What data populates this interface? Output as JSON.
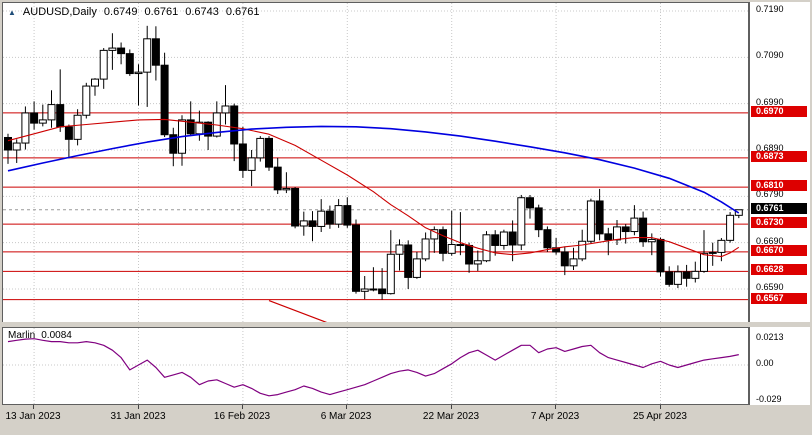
{
  "header": {
    "symbol": "AUDUSD,Daily",
    "open": "0.6749",
    "high": "0.6761",
    "low": "0.6743",
    "close": "0.6761"
  },
  "indicator_header": {
    "name": "Marlin",
    "value": "0.0084"
  },
  "price_axis": {
    "ticks": [
      "0.7190",
      "0.7090",
      "0.6990",
      "0.6890",
      "0.6790",
      "0.6690",
      "0.6590"
    ],
    "level_badges": [
      "0.6970",
      "0.6873",
      "0.6810",
      "0.6730",
      "0.6670",
      "0.6628",
      "0.6567"
    ],
    "current_badge": "0.6761"
  },
  "indicator_axis": {
    "ticks": [
      {
        "label": "0.0213",
        "value": 0.0213
      },
      {
        "label": "0.00",
        "value": 0
      },
      {
        "label": "-0.029",
        "value": -0.029
      }
    ]
  },
  "colors": {
    "frame": "#d4d0c8",
    "panel_bg": "#ffffff",
    "grid": "#c8c8c8",
    "candle_border": "#000000",
    "bull": "#ffffff",
    "bear": "#000000",
    "ma_slow": "#0000e0",
    "ma_fast": "#cc0000",
    "level_line": "#cc0000",
    "badge_red": "#dd0000",
    "badge_black": "#000000",
    "marlin": "#800080",
    "bid_line": "#999999"
  },
  "chart_data": {
    "type": "candlestick",
    "title": "AUDUSD, Daily",
    "ylabel": "Price",
    "ylim": [
      0.6517,
      0.7207
    ],
    "grid": true,
    "current_price": 0.6761,
    "levels": [
      0.697,
      0.6873,
      0.681,
      0.673,
      0.667,
      0.6628,
      0.6567
    ],
    "x_labels": [
      {
        "label": "13 Jan 2023",
        "index": 3
      },
      {
        "label": "31 Jan 2023",
        "index": 15
      },
      {
        "label": "16 Feb 2023",
        "index": 27
      },
      {
        "label": "6 Mar 2023",
        "index": 39
      },
      {
        "label": "22 Mar 2023",
        "index": 51
      },
      {
        "label": "7 Apr 2023",
        "index": 63
      },
      {
        "label": "25 Apr 2023",
        "index": 75
      }
    ],
    "candles": [
      [
        0.6917,
        0.6925,
        0.686,
        0.689
      ],
      [
        0.689,
        0.6913,
        0.6862,
        0.6905
      ],
      [
        0.6905,
        0.6984,
        0.6891,
        0.697
      ],
      [
        0.697,
        0.6995,
        0.6934,
        0.6948
      ],
      [
        0.6948,
        0.6988,
        0.6941,
        0.6955
      ],
      [
        0.6955,
        0.7019,
        0.6938,
        0.6988
      ],
      [
        0.6988,
        0.7064,
        0.6929,
        0.694
      ],
      [
        0.694,
        0.6945,
        0.6872,
        0.6913
      ],
      [
        0.6913,
        0.6978,
        0.69,
        0.6965
      ],
      [
        0.6965,
        0.7035,
        0.6958,
        0.7028
      ],
      [
        0.7028,
        0.7045,
        0.7007,
        0.7043
      ],
      [
        0.7043,
        0.711,
        0.7022,
        0.7105
      ],
      [
        0.7105,
        0.7142,
        0.7063,
        0.711
      ],
      [
        0.711,
        0.7122,
        0.7075,
        0.7098
      ],
      [
        0.7098,
        0.7107,
        0.705,
        0.7055
      ],
      [
        0.7055,
        0.7075,
        0.6986,
        0.7058
      ],
      [
        0.7058,
        0.7158,
        0.6983,
        0.713
      ],
      [
        0.713,
        0.7157,
        0.704,
        0.7073
      ],
      [
        0.7073,
        0.71,
        0.6918,
        0.6923
      ],
      [
        0.6923,
        0.6938,
        0.6855,
        0.6883
      ],
      [
        0.6883,
        0.6965,
        0.6856,
        0.6955
      ],
      [
        0.6955,
        0.6995,
        0.692,
        0.6925
      ],
      [
        0.6925,
        0.6975,
        0.691,
        0.695
      ],
      [
        0.695,
        0.6952,
        0.689,
        0.692
      ],
      [
        0.692,
        0.6995,
        0.6917,
        0.697
      ],
      [
        0.697,
        0.703,
        0.6945,
        0.6985
      ],
      [
        0.6985,
        0.699,
        0.6866,
        0.6903
      ],
      [
        0.6903,
        0.694,
        0.683,
        0.6846
      ],
      [
        0.6846,
        0.689,
        0.6812,
        0.6873
      ],
      [
        0.6873,
        0.692,
        0.6865,
        0.6915
      ],
      [
        0.6915,
        0.692,
        0.6845,
        0.6853
      ],
      [
        0.6853,
        0.6873,
        0.6795,
        0.6804
      ],
      [
        0.6804,
        0.6842,
        0.6797,
        0.6807
      ],
      [
        0.6807,
        0.681,
        0.6721,
        0.6726
      ],
      [
        0.6726,
        0.6757,
        0.6705,
        0.6737
      ],
      [
        0.6737,
        0.6758,
        0.6693,
        0.6725
      ],
      [
        0.6725,
        0.6784,
        0.6713,
        0.6758
      ],
      [
        0.6758,
        0.677,
        0.672,
        0.673
      ],
      [
        0.673,
        0.6784,
        0.6722,
        0.677
      ],
      [
        0.677,
        0.6788,
        0.6722,
        0.6728
      ],
      [
        0.6728,
        0.674,
        0.658,
        0.6585
      ],
      [
        0.6585,
        0.6618,
        0.6568,
        0.659
      ],
      [
        0.659,
        0.6637,
        0.6585,
        0.659
      ],
      [
        0.659,
        0.6635,
        0.6567,
        0.658
      ],
      [
        0.658,
        0.6717,
        0.6578,
        0.6665
      ],
      [
        0.6665,
        0.6697,
        0.663,
        0.6685
      ],
      [
        0.6685,
        0.6695,
        0.659,
        0.6615
      ],
      [
        0.6615,
        0.667,
        0.6612,
        0.6655
      ],
      [
        0.6655,
        0.6712,
        0.665,
        0.6698
      ],
      [
        0.6698,
        0.6725,
        0.6668,
        0.6718
      ],
      [
        0.6718,
        0.6725,
        0.665,
        0.6667
      ],
      [
        0.6667,
        0.6759,
        0.6662,
        0.6686
      ],
      [
        0.6686,
        0.6756,
        0.6663,
        0.6684
      ],
      [
        0.6684,
        0.669,
        0.6625,
        0.6644
      ],
      [
        0.6644,
        0.6673,
        0.6629,
        0.6651
      ],
      [
        0.6651,
        0.6715,
        0.6648,
        0.6707
      ],
      [
        0.6707,
        0.6717,
        0.6662,
        0.6684
      ],
      [
        0.6684,
        0.6718,
        0.6675,
        0.6713
      ],
      [
        0.6713,
        0.6738,
        0.665,
        0.6685
      ],
      [
        0.6685,
        0.6793,
        0.6674,
        0.6787
      ],
      [
        0.6787,
        0.6793,
        0.6742,
        0.6765
      ],
      [
        0.6765,
        0.6772,
        0.6702,
        0.6718
      ],
      [
        0.6718,
        0.6725,
        0.667,
        0.6679
      ],
      [
        0.6679,
        0.67,
        0.6664,
        0.667
      ],
      [
        0.667,
        0.6682,
        0.662,
        0.664
      ],
      [
        0.664,
        0.6679,
        0.6631,
        0.6655
      ],
      [
        0.6655,
        0.6718,
        0.665,
        0.6693
      ],
      [
        0.6693,
        0.6785,
        0.6689,
        0.678
      ],
      [
        0.678,
        0.6806,
        0.6695,
        0.6709
      ],
      [
        0.6709,
        0.6722,
        0.6663,
        0.6696
      ],
      [
        0.6696,
        0.6739,
        0.6685,
        0.6724
      ],
      [
        0.6724,
        0.673,
        0.6688,
        0.6714
      ],
      [
        0.6714,
        0.6771,
        0.6706,
        0.6743
      ],
      [
        0.6743,
        0.6757,
        0.6681,
        0.6692
      ],
      [
        0.6692,
        0.671,
        0.6663,
        0.6697
      ],
      [
        0.6697,
        0.6701,
        0.6617,
        0.6627
      ],
      [
        0.6627,
        0.6639,
        0.6595,
        0.66
      ],
      [
        0.66,
        0.6641,
        0.6592,
        0.6627
      ],
      [
        0.6627,
        0.6642,
        0.6595,
        0.6613
      ],
      [
        0.6613,
        0.6649,
        0.6604,
        0.6628
      ],
      [
        0.6628,
        0.6717,
        0.6625,
        0.6667
      ],
      [
        0.6667,
        0.669,
        0.664,
        0.6669
      ],
      [
        0.6669,
        0.67,
        0.665,
        0.6695
      ],
      [
        0.6695,
        0.6756,
        0.669,
        0.6749
      ],
      [
        0.6749,
        0.6761,
        0.6743,
        0.6761
      ]
    ],
    "ma_slow_blue": [
      [
        0,
        0.6845
      ],
      [
        4,
        0.6862
      ],
      [
        8,
        0.6878
      ],
      [
        12,
        0.6893
      ],
      [
        16,
        0.6907
      ],
      [
        20,
        0.6919
      ],
      [
        24,
        0.6928
      ],
      [
        28,
        0.6935
      ],
      [
        32,
        0.6939
      ],
      [
        36,
        0.6941
      ],
      [
        40,
        0.694
      ],
      [
        44,
        0.6936
      ],
      [
        48,
        0.6929
      ],
      [
        52,
        0.692
      ],
      [
        56,
        0.6909
      ],
      [
        60,
        0.6897
      ],
      [
        64,
        0.6884
      ],
      [
        68,
        0.6869
      ],
      [
        72,
        0.6851
      ],
      [
        76,
        0.6829
      ],
      [
        80,
        0.6799
      ],
      [
        82,
        0.6778
      ],
      [
        84,
        0.6754
      ]
    ],
    "ma_fast_red": [
      [
        0,
        0.691
      ],
      [
        3,
        0.6925
      ],
      [
        6,
        0.694
      ],
      [
        9,
        0.6945
      ],
      [
        12,
        0.695
      ],
      [
        15,
        0.6955
      ],
      [
        18,
        0.6956
      ],
      [
        21,
        0.695
      ],
      [
        24,
        0.6944
      ],
      [
        27,
        0.6936
      ],
      [
        30,
        0.6924
      ],
      [
        33,
        0.69
      ],
      [
        36,
        0.6868
      ],
      [
        39,
        0.6836
      ],
      [
        42,
        0.68
      ],
      [
        44,
        0.6772
      ],
      [
        46,
        0.6748
      ],
      [
        48,
        0.6722
      ],
      [
        50,
        0.6705
      ],
      [
        52,
        0.669
      ],
      [
        54,
        0.6678
      ],
      [
        56,
        0.6668
      ],
      [
        58,
        0.6664
      ],
      [
        60,
        0.6668
      ],
      [
        62,
        0.6675
      ],
      [
        64,
        0.6681
      ],
      [
        66,
        0.6685
      ],
      [
        68,
        0.6691
      ],
      [
        70,
        0.6697
      ],
      [
        72,
        0.6701
      ],
      [
        74,
        0.6701
      ],
      [
        76,
        0.6692
      ],
      [
        78,
        0.6678
      ],
      [
        80,
        0.6664
      ],
      [
        82,
        0.666
      ],
      [
        83,
        0.6668
      ],
      [
        84,
        0.668
      ]
    ],
    "trendline": {
      "from": [
        30,
        0.6565
      ],
      "to": [
        38,
        0.6508
      ]
    },
    "marlin": {
      "name": "Marlin",
      "current": 0.0084,
      "ylim": [
        -0.0325,
        0.03
      ],
      "values": [
        0.019,
        0.02,
        0.021,
        0.0213,
        0.02,
        0.019,
        0.019,
        0.018,
        0.018,
        0.019,
        0.018,
        0.016,
        0.012,
        0.006,
        -0.004,
        0.0,
        0.004,
        -0.002,
        -0.01,
        -0.008,
        -0.006,
        -0.01,
        -0.016,
        -0.013,
        -0.012,
        -0.015,
        -0.018,
        -0.016,
        -0.019,
        -0.023,
        -0.025,
        -0.024,
        -0.022,
        -0.02,
        -0.017,
        -0.019,
        -0.022,
        -0.024,
        -0.022,
        -0.02,
        -0.018,
        -0.016,
        -0.013,
        -0.01,
        -0.007,
        -0.005,
        -0.004,
        -0.006,
        -0.009,
        -0.007,
        -0.003,
        0.001,
        0.006,
        0.01,
        0.012,
        0.008,
        0.004,
        0.008,
        0.012,
        0.016,
        0.016,
        0.01,
        0.013,
        0.014,
        0.011,
        0.013,
        0.015,
        0.016,
        0.01,
        0.006,
        0.004,
        0.002,
        0.0,
        -0.002,
        0.001,
        0.003,
        0.0,
        -0.002,
        0.0,
        0.002,
        0.004,
        0.005,
        0.006,
        0.007,
        0.0084
      ]
    }
  }
}
